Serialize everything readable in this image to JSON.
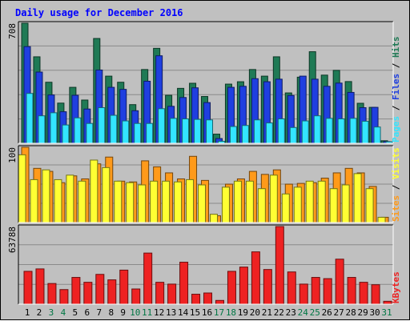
{
  "chart_data": {
    "type": "bar",
    "title": "Daily usage for December 2016",
    "days": [
      "1",
      "2",
      "3",
      "4",
      "5",
      "6",
      "7",
      "8",
      "9",
      "10",
      "11",
      "12",
      "13",
      "14",
      "15",
      "16",
      "17",
      "18",
      "19",
      "20",
      "21",
      "22",
      "23",
      "24",
      "25",
      "26",
      "27",
      "28",
      "29",
      "30",
      "31"
    ],
    "weekend_days": [
      "3",
      "4",
      "10",
      "11",
      "17",
      "18",
      "24",
      "25",
      "31"
    ],
    "colors": {
      "hits": "#1f7a55",
      "files": "#1f3fe0",
      "pages": "#33e5ff",
      "visits": "#ffff33",
      "sites": "#ff9a1a",
      "kbytes": "#ee2222",
      "weekday_label": "#000000",
      "weekend_label": "#007744",
      "title": "#0000ff",
      "bg": "#c0c0c0",
      "plot_bg": "#bdbdbd",
      "grid": "#8a8a8a"
    },
    "panels": [
      {
        "id": "requests",
        "max_label": "708",
        "ylim": [
          0,
          708
        ],
        "right_labels": [
          {
            "text": "Pages",
            "color": "#33e5ff"
          },
          {
            "text": " / ",
            "color": "#000000"
          },
          {
            "text": "Files",
            "color": "#1f3fe0"
          },
          {
            "text": " / ",
            "color": "#000000"
          },
          {
            "text": "Hits",
            "color": "#1f7a55"
          }
        ],
        "series": [
          {
            "name": "Hits",
            "color": "#1f7a55",
            "values": [
              708,
              510,
              360,
              237,
              330,
              255,
              618,
              396,
              360,
              228,
              435,
              560,
              283,
              324,
              354,
              276,
              54,
              349,
              363,
              435,
              396,
              510,
              297,
              390,
              540,
              402,
              430,
              364,
              236,
              212,
              15
            ]
          },
          {
            "name": "Files",
            "color": "#1f3fe0",
            "values": [
              570,
              420,
              285,
              186,
              283,
              202,
              432,
              330,
              318,
              192,
              366,
              516,
              218,
              270,
              327,
              240,
              28,
              330,
              336,
              381,
              363,
              378,
              282,
              396,
              378,
              336,
              355,
              300,
              210,
              212,
              10
            ]
          },
          {
            "name": "Pages",
            "color": "#33e5ff",
            "values": [
              294,
              162,
              180,
              108,
              150,
              117,
              210,
              165,
              132,
              117,
              117,
              204,
              147,
              144,
              141,
              138,
              12,
              99,
              105,
              138,
              120,
              144,
              93,
              132,
              162,
              147,
              144,
              147,
              130,
              96,
              9
            ]
          }
        ]
      },
      {
        "id": "visits",
        "max_label": "100",
        "ylim": [
          0,
          100
        ],
        "right_labels": [
          {
            "text": "Sites",
            "color": "#ff9a1a"
          },
          {
            "text": " / ",
            "color": "#000000"
          },
          {
            "text": "Visits",
            "color": "#ffff33"
          }
        ],
        "series": [
          {
            "name": "Visits",
            "color": "#ffff33",
            "values": [
              90,
              57,
              70,
              57,
              63,
              55,
              83,
              73,
              55,
              53,
              50,
              55,
              55,
              54,
              57,
              50,
              11,
              47,
              55,
              55,
              45,
              63,
              38,
              47,
              55,
              55,
              45,
              50,
              65,
              45,
              7
            ]
          },
          {
            "name": "Sites",
            "color": "#ff9a1a",
            "values": [
              100,
              72,
              68,
              53,
              62,
              58,
              78,
              87,
              55,
              54,
              82,
              74,
              66,
              58,
              88,
              56,
              9,
              51,
              58,
              68,
              64,
              70,
              51,
              52,
              53,
              59,
              66,
              72,
              66,
              48,
              7
            ]
          }
        ]
      },
      {
        "id": "kbytes",
        "max_label": "63788",
        "ylim": [
          0,
          63788
        ],
        "right_labels": [
          {
            "text": "KBytes",
            "color": "#ee2222"
          }
        ],
        "series": [
          {
            "name": "KBytes",
            "color": "#ee2222",
            "values": [
              27000,
              29000,
              17000,
              12000,
              22000,
              18000,
              24500,
              20000,
              28000,
              12500,
              42000,
              18000,
              16500,
              34500,
              8200,
              9200,
              3100,
              27000,
              30500,
              43000,
              28500,
              63788,
              26500,
              16500,
              22000,
              21000,
              37000,
              22000,
              18000,
              16000,
              2400
            ]
          }
        ]
      }
    ]
  }
}
